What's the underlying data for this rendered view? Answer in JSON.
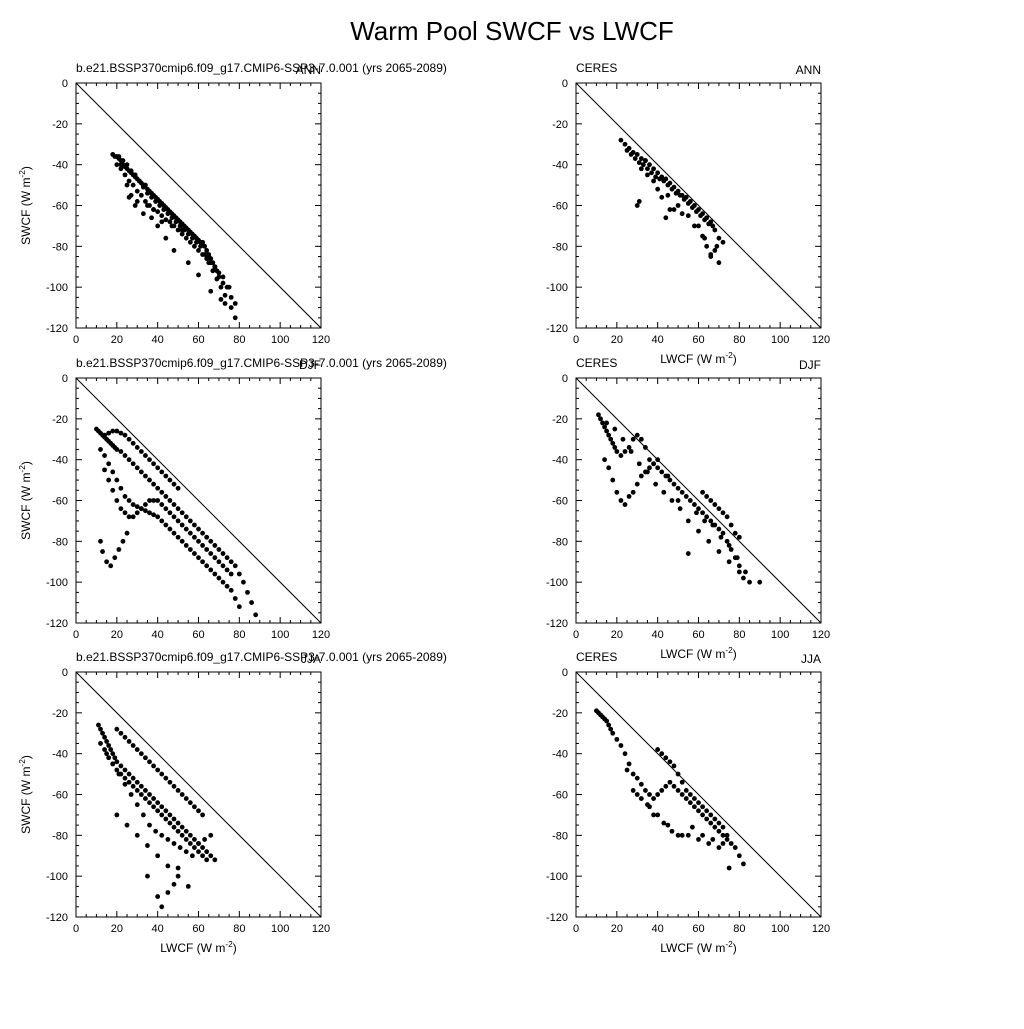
{
  "title": "Warm Pool SWCF vs LWCF",
  "chart_data": [
    {
      "type": "scatter",
      "left_title": "b.e21.BSSP370cmip6.f09_g17.CMIP6-SSP3-7.0.001 (yrs 2065-2089)",
      "right_title": "ANN",
      "xlabel": "",
      "ylabel": "SWCF (W m-2)",
      "xlim": [
        0,
        120
      ],
      "ylim": [
        -120,
        0
      ],
      "x": [
        18,
        19,
        20,
        21,
        22,
        22,
        23,
        24,
        25,
        26,
        27,
        28,
        29,
        30,
        31,
        32,
        33,
        34,
        35,
        36,
        37,
        38,
        39,
        40,
        41,
        42,
        43,
        44,
        45,
        46,
        47,
        48,
        49,
        50,
        51,
        52,
        53,
        54,
        55,
        56,
        57,
        58,
        59,
        60,
        61,
        62,
        63,
        64,
        65,
        66,
        67,
        68,
        69,
        70,
        72,
        74,
        76,
        78,
        20,
        22,
        24,
        26,
        28,
        30,
        32,
        34,
        36,
        38,
        40,
        42,
        44,
        46,
        48,
        50,
        52,
        54,
        56,
        58,
        60,
        62,
        64,
        66,
        68,
        70,
        21,
        23,
        25,
        27,
        29,
        31,
        33,
        35,
        37,
        39,
        41,
        43,
        45,
        47,
        49,
        51,
        53,
        55,
        57,
        59,
        61,
        63,
        65,
        67,
        69,
        71,
        73,
        25,
        27,
        30,
        35,
        38,
        26,
        29,
        33,
        37,
        42,
        47,
        52,
        58,
        62,
        65,
        68,
        72,
        75,
        76,
        78,
        71,
        73,
        66,
        55,
        60,
        48,
        44,
        40
      ],
      "y": [
        -35,
        -36,
        -36,
        -37,
        -38,
        -40,
        -40,
        -41,
        -42,
        -43,
        -44,
        -45,
        -46,
        -47,
        -48,
        -49,
        -50,
        -50,
        -52,
        -53,
        -54,
        -55,
        -56,
        -57,
        -58,
        -59,
        -60,
        -61,
        -62,
        -63,
        -64,
        -65,
        -66,
        -67,
        -68,
        -69,
        -70,
        -71,
        -72,
        -73,
        -74,
        -75,
        -76,
        -77,
        -78,
        -79,
        -80,
        -82,
        -84,
        -86,
        -88,
        -90,
        -92,
        -95,
        -98,
        -100,
        -105,
        -108,
        -40,
        -42,
        -45,
        -48,
        -50,
        -53,
        -55,
        -58,
        -60,
        -62,
        -63,
        -65,
        -67,
        -68,
        -70,
        -72,
        -74,
        -76,
        -78,
        -80,
        -82,
        -84,
        -86,
        -88,
        -90,
        -93,
        -36,
        -38,
        -40,
        -43,
        -45,
        -48,
        -51,
        -54,
        -56,
        -58,
        -60,
        -62,
        -64,
        -66,
        -68,
        -70,
        -72,
        -74,
        -76,
        -78,
        -80,
        -84,
        -88,
        -92,
        -96,
        -100,
        -104,
        -50,
        -55,
        -58,
        -60,
        -62,
        -56,
        -60,
        -64,
        -66,
        -68,
        -70,
        -72,
        -75,
        -78,
        -85,
        -90,
        -95,
        -100,
        -110,
        -115,
        -106,
        -108,
        -102,
        -88,
        -94,
        -82,
        -76,
        -70
      ]
    },
    {
      "type": "scatter",
      "left_title": "CERES",
      "right_title": "ANN",
      "xlabel": "LWCF (W m-2)",
      "ylabel": "",
      "xlim": [
        0,
        120
      ],
      "ylim": [
        -120,
        0
      ],
      "x": [
        22,
        24,
        26,
        28,
        30,
        32,
        34,
        36,
        38,
        40,
        42,
        44,
        46,
        48,
        50,
        52,
        54,
        56,
        58,
        60,
        62,
        64,
        66,
        68,
        70,
        72,
        25,
        27,
        29,
        31,
        33,
        35,
        37,
        39,
        41,
        43,
        45,
        47,
        49,
        51,
        53,
        55,
        57,
        59,
        61,
        63,
        65,
        67,
        35,
        40,
        45,
        50,
        55,
        60,
        62,
        64,
        66,
        68,
        70,
        32,
        34,
        38,
        42,
        48,
        52,
        58,
        63,
        66,
        69,
        30,
        31,
        44,
        46
      ],
      "y": [
        -28,
        -30,
        -32,
        -34,
        -35,
        -37,
        -38,
        -40,
        -42,
        -44,
        -46,
        -47,
        -49,
        -51,
        -53,
        -55,
        -56,
        -58,
        -60,
        -62,
        -64,
        -66,
        -68,
        -72,
        -76,
        -78,
        -33,
        -35,
        -37,
        -39,
        -40,
        -42,
        -44,
        -46,
        -47,
        -48,
        -50,
        -52,
        -54,
        -55,
        -57,
        -59,
        -61,
        -63,
        -65,
        -67,
        -69,
        -70,
        -45,
        -52,
        -55,
        -60,
        -65,
        -70,
        -75,
        -80,
        -85,
        -82,
        -88,
        -42,
        -38,
        -48,
        -56,
        -62,
        -64,
        -70,
        -76,
        -84,
        -80,
        -60,
        -58,
        -66,
        -62
      ]
    },
    {
      "type": "scatter",
      "left_title": "b.e21.BSSP370cmip6.f09_g17.CMIP6-SSP3-7.0.001 (yrs 2065-2089)",
      "right_title": "DJF",
      "xlabel": "",
      "ylabel": "SWCF (W m-2)",
      "xlim": [
        0,
        120
      ],
      "ylim": [
        -120,
        0
      ],
      "x": [
        10,
        11,
        12,
        13,
        14,
        15,
        16,
        17,
        18,
        19,
        20,
        22,
        24,
        26,
        28,
        30,
        32,
        34,
        36,
        38,
        40,
        42,
        44,
        46,
        48,
        50,
        52,
        54,
        56,
        58,
        60,
        62,
        64,
        66,
        68,
        70,
        72,
        74,
        76,
        78,
        80,
        82,
        84,
        86,
        88,
        12,
        14,
        16,
        18,
        20,
        22,
        24,
        26,
        28,
        30,
        32,
        34,
        36,
        38,
        40,
        42,
        44,
        46,
        48,
        50,
        52,
        54,
        56,
        58,
        60,
        62,
        64,
        66,
        68,
        70,
        72,
        74,
        76,
        78,
        80,
        14,
        16,
        18,
        20,
        22,
        24,
        26,
        28,
        30,
        32,
        34,
        36,
        38,
        40,
        42,
        44,
        46,
        48,
        50,
        52,
        54,
        56,
        58,
        60,
        62,
        64,
        66,
        68,
        70,
        72,
        74,
        76,
        12,
        13,
        15,
        17,
        19,
        21,
        23,
        25,
        14,
        16,
        18,
        20,
        22,
        24,
        26,
        28,
        30,
        32,
        34,
        36,
        38,
        40,
        42,
        44,
        46,
        48,
        50
      ],
      "y": [
        -25,
        -26,
        -27,
        -28,
        -29,
        -30,
        -31,
        -32,
        -33,
        -34,
        -35,
        -36,
        -38,
        -40,
        -42,
        -44,
        -46,
        -48,
        -50,
        -52,
        -54,
        -56,
        -58,
        -60,
        -62,
        -64,
        -66,
        -68,
        -70,
        -72,
        -74,
        -76,
        -78,
        -80,
        -82,
        -84,
        -86,
        -88,
        -90,
        -92,
        -96,
        -100,
        -105,
        -110,
        -116,
        -35,
        -38,
        -42,
        -46,
        -50,
        -54,
        -58,
        -60,
        -62,
        -63,
        -64,
        -65,
        -66,
        -67,
        -68,
        -70,
        -72,
        -74,
        -76,
        -78,
        -80,
        -82,
        -84,
        -86,
        -88,
        -90,
        -92,
        -94,
        -96,
        -98,
        -100,
        -102,
        -104,
        -108,
        -112,
        -45,
        -50,
        -55,
        -60,
        -64,
        -66,
        -68,
        -68,
        -66,
        -64,
        -62,
        -60,
        -60,
        -60,
        -62,
        -64,
        -66,
        -68,
        -70,
        -72,
        -74,
        -76,
        -78,
        -80,
        -82,
        -84,
        -86,
        -88,
        -90,
        -92,
        -94,
        -96,
        -80,
        -85,
        -90,
        -92,
        -88,
        -84,
        -80,
        -76,
        -28,
        -27,
        -26,
        -26,
        -27,
        -28,
        -30,
        -32,
        -34,
        -36,
        -38,
        -40,
        -42,
        -44,
        -46,
        -48,
        -50,
        -52,
        -54
      ]
    },
    {
      "type": "scatter",
      "left_title": "CERES",
      "right_title": "DJF",
      "xlabel": "LWCF (W m-2)",
      "ylabel": "",
      "xlim": [
        0,
        120
      ],
      "ylim": [
        -120,
        0
      ],
      "x": [
        11,
        12,
        13,
        14,
        15,
        16,
        17,
        18,
        19,
        20,
        22,
        24,
        26,
        28,
        30,
        32,
        34,
        36,
        38,
        40,
        42,
        44,
        46,
        48,
        50,
        52,
        54,
        56,
        58,
        60,
        62,
        64,
        66,
        68,
        70,
        72,
        74,
        76,
        78,
        80,
        82,
        14,
        16,
        18,
        20,
        22,
        24,
        26,
        28,
        30,
        32,
        34,
        36,
        38,
        40,
        45,
        50,
        55,
        60,
        65,
        70,
        75,
        80,
        85,
        90,
        15,
        19,
        23,
        27,
        31,
        35,
        39,
        43,
        47,
        51,
        55,
        59,
        63,
        67,
        71,
        75,
        79,
        83,
        62,
        64,
        66,
        68,
        70,
        72,
        74,
        76,
        78,
        80
      ],
      "y": [
        -18,
        -20,
        -22,
        -24,
        -26,
        -28,
        -30,
        -32,
        -34,
        -36,
        -38,
        -36,
        -34,
        -30,
        -28,
        -30,
        -34,
        -40,
        -42,
        -44,
        -46,
        -48,
        -50,
        -52,
        -54,
        -56,
        -58,
        -60,
        -62,
        -64,
        -66,
        -68,
        -70,
        -72,
        -74,
        -76,
        -80,
        -84,
        -88,
        -92,
        -98,
        -40,
        -44,
        -50,
        -56,
        -60,
        -62,
        -58,
        -56,
        -52,
        -48,
        -46,
        -44,
        -42,
        -40,
        -48,
        -60,
        -70,
        -75,
        -80,
        -85,
        -90,
        -95,
        -100,
        -100,
        -22,
        -25,
        -30,
        -36,
        -42,
        -46,
        -52,
        -56,
        -60,
        -64,
        -86,
        -66,
        -70,
        -72,
        -78,
        -82,
        -88,
        -95,
        -56,
        -58,
        -60,
        -62,
        -64,
        -66,
        -68,
        -72,
        -76,
        -78
      ]
    },
    {
      "type": "scatter",
      "left_title": "b.e21.BSSP370cmip6.f09_g17.CMIP6-SSP3-7.0.001 (yrs 2065-2089)",
      "right_title": "JJA",
      "xlabel": "LWCF (W m-2)",
      "ylabel": "SWCF (W m-2)",
      "xlim": [
        0,
        120
      ],
      "ylim": [
        -120,
        0
      ],
      "x": [
        11,
        12,
        13,
        14,
        15,
        16,
        17,
        18,
        19,
        20,
        22,
        24,
        26,
        28,
        30,
        32,
        34,
        36,
        38,
        40,
        42,
        44,
        46,
        48,
        50,
        52,
        54,
        56,
        58,
        60,
        62,
        64,
        66,
        68,
        12,
        14,
        16,
        18,
        20,
        22,
        24,
        26,
        28,
        30,
        32,
        34,
        36,
        38,
        40,
        42,
        44,
        46,
        48,
        50,
        52,
        54,
        56,
        58,
        60,
        62,
        64,
        15,
        18,
        21,
        24,
        27,
        30,
        33,
        36,
        39,
        42,
        45,
        48,
        51,
        54,
        57,
        60,
        63,
        66,
        20,
        25,
        30,
        35,
        40,
        45,
        50,
        55,
        20,
        22,
        24,
        26,
        28,
        30,
        32,
        34,
        36,
        38,
        40,
        42,
        44,
        46,
        48,
        50,
        52,
        54,
        56,
        58,
        60,
        62,
        35,
        40,
        42,
        45,
        48,
        50
      ],
      "y": [
        -26,
        -28,
        -30,
        -32,
        -34,
        -36,
        -38,
        -40,
        -42,
        -44,
        -46,
        -48,
        -50,
        -52,
        -54,
        -56,
        -58,
        -60,
        -62,
        -64,
        -66,
        -68,
        -70,
        -72,
        -74,
        -76,
        -78,
        -80,
        -82,
        -84,
        -86,
        -88,
        -90,
        -92,
        -35,
        -38,
        -42,
        -45,
        -48,
        -50,
        -52,
        -54,
        -56,
        -58,
        -60,
        -62,
        -64,
        -66,
        -68,
        -70,
        -72,
        -74,
        -76,
        -78,
        -80,
        -82,
        -84,
        -86,
        -88,
        -90,
        -92,
        -40,
        -45,
        -50,
        -55,
        -60,
        -65,
        -70,
        -75,
        -78,
        -80,
        -82,
        -84,
        -86,
        -88,
        -90,
        -84,
        -82,
        -80,
        -70,
        -75,
        -80,
        -85,
        -90,
        -95,
        -100,
        -105,
        -28,
        -30,
        -32,
        -34,
        -36,
        -38,
        -40,
        -42,
        -44,
        -46,
        -48,
        -50,
        -52,
        -54,
        -56,
        -58,
        -60,
        -62,
        -64,
        -66,
        -68,
        -70,
        -100,
        -110,
        -115,
        -108,
        -104,
        -96
      ]
    },
    {
      "type": "scatter",
      "left_title": "CERES",
      "right_title": "JJA",
      "xlabel": "LWCF (W m-2)",
      "ylabel": "",
      "xlim": [
        0,
        120
      ],
      "ylim": [
        -120,
        0
      ],
      "x": [
        10,
        11,
        12,
        13,
        14,
        15,
        16,
        17,
        18,
        20,
        22,
        24,
        26,
        28,
        30,
        32,
        34,
        36,
        38,
        40,
        42,
        44,
        46,
        48,
        50,
        52,
        54,
        56,
        58,
        60,
        62,
        64,
        66,
        68,
        70,
        72,
        74,
        76,
        78,
        80,
        82,
        40,
        42,
        44,
        46,
        48,
        50,
        52,
        54,
        56,
        58,
        60,
        62,
        64,
        66,
        68,
        70,
        72,
        74,
        25,
        30,
        35,
        40,
        45,
        50,
        55,
        60,
        65,
        70,
        75,
        28,
        32,
        36,
        38,
        43,
        47,
        52,
        57,
        62,
        67,
        72
      ],
      "y": [
        -19,
        -20,
        -21,
        -22,
        -23,
        -24,
        -26,
        -28,
        -30,
        -33,
        -36,
        -40,
        -45,
        -50,
        -52,
        -55,
        -58,
        -60,
        -62,
        -60,
        -58,
        -56,
        -54,
        -56,
        -58,
        -60,
        -62,
        -64,
        -66,
        -68,
        -70,
        -72,
        -74,
        -76,
        -78,
        -80,
        -82,
        -84,
        -86,
        -90,
        -94,
        -38,
        -40,
        -42,
        -44,
        -46,
        -50,
        -54,
        -58,
        -60,
        -62,
        -64,
        -66,
        -68,
        -70,
        -72,
        -74,
        -76,
        -80,
        -48,
        -60,
        -65,
        -70,
        -75,
        -80,
        -80,
        -82,
        -84,
        -86,
        -96,
        -58,
        -62,
        -66,
        -70,
        -74,
        -78,
        -80,
        -76,
        -80,
        -82,
        -84
      ]
    }
  ]
}
